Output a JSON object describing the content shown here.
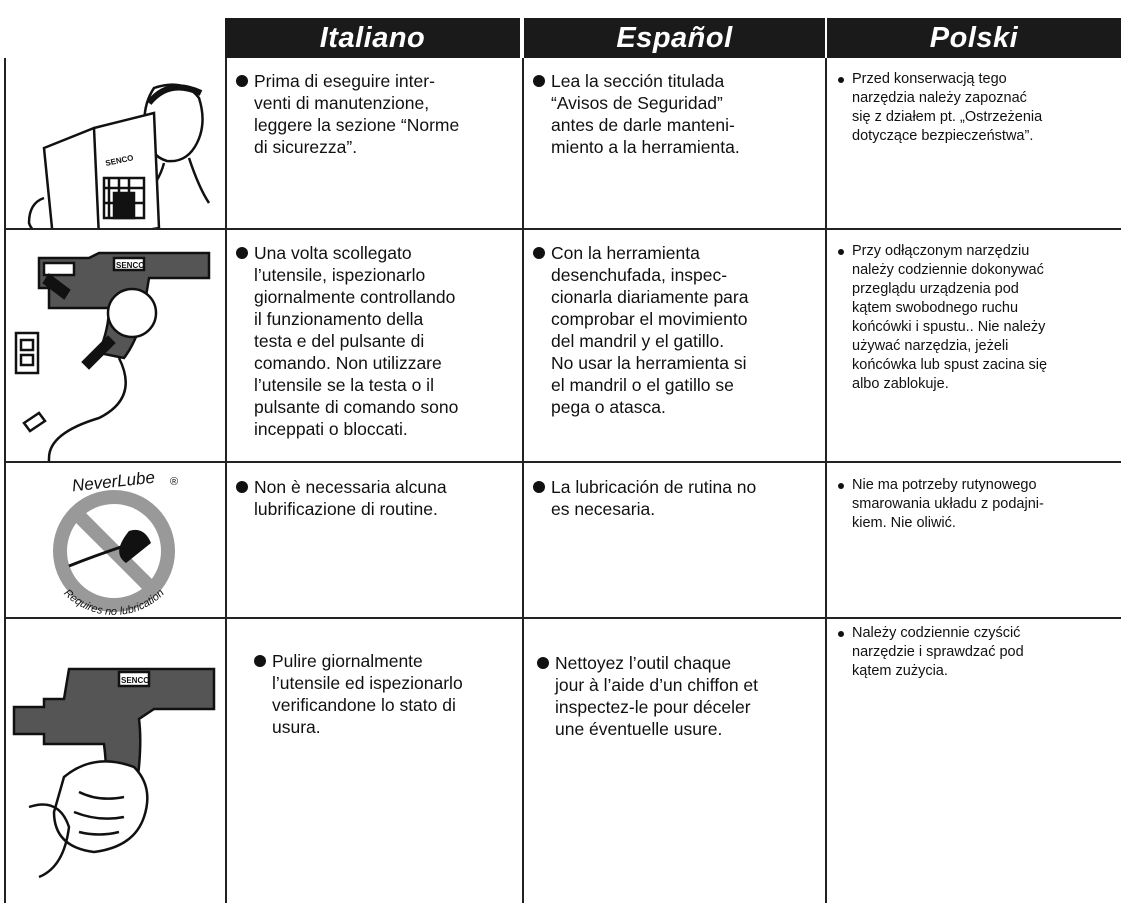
{
  "header": {
    "columns": [
      "Italiano",
      "Español",
      "Polski"
    ]
  },
  "rows": [
    {
      "icon_text": "SENCO",
      "cells": [
        {
          "lines": [
            "Prima di eseguire inter-",
            "venti di manutenzione,",
            "leggere la sezione “Norme",
            "di sicurezza”."
          ]
        },
        {
          "lines": [
            "Lea la sección titulada",
            "“Avisos de Seguridad”",
            "antes de darle manteni-",
            "miento a la herramienta."
          ]
        },
        {
          "lines": [
            "Przed konserwacją tego",
            "narzędzia należy zapoznać",
            "się z działem pt. „Ostrzeżenia",
            "dotyczące bezpieczeństwa”."
          ]
        }
      ]
    },
    {
      "icon_text": "SENCO",
      "cells": [
        {
          "lines": [
            "Una volta scollegato",
            "l’utensile, ispezionarlo",
            "giornalmente controllando",
            "il funzionamento della",
            "testa e del pulsante di",
            "comando. Non utilizzare",
            "l’utensile se la testa o il",
            "pulsante di comando sono",
            "inceppati o bloccati."
          ]
        },
        {
          "lines": [
            "Con la herramienta",
            "desenchufada, inspec-",
            "cionarla diariamente para",
            "comprobar el movimiento",
            "del mandril y el gatillo.",
            "No usar la herramienta si",
            "el mandril o el gatillo se",
            "pega o atasca."
          ]
        },
        {
          "lines": [
            "Przy odłączonym narzędziu",
            "należy codziennie dokonywać",
            "przeglądu urządzenia pod",
            "kątem swobodnego ruchu",
            "końcówki i spustu.. Nie należy",
            "używać narzędzia, jeżeli",
            "końcówka lub spust zacina się",
            "albo zablokuje."
          ]
        }
      ]
    },
    {
      "icon_text": "NeverLube",
      "icon_mark": "®",
      "icon_caption": "Requires no lubrication",
      "cells": [
        {
          "lines": [
            "Non è necessaria alcuna",
            "lubrificazione di routine."
          ]
        },
        {
          "lines": [
            "La lubricación de rutina no",
            "es necesaria."
          ]
        },
        {
          "lines": [
            "Nie ma potrzeby rutynowego",
            "smarowania układu z podajni-",
            "kiem. Nie oliwić."
          ]
        }
      ]
    },
    {
      "icon_text": "SENCO",
      "cells": [
        {
          "lines": [
            "Pulire giornalmente",
            "l’utensile ed ispezionarlo",
            "verificandone lo stato di",
            "usura."
          ]
        },
        {
          "lines": [
            "Nettoyez l’outil chaque",
            "jour à l’aide d’un chiffon et",
            "inspectez-le pour déceler",
            "une éventuelle usure."
          ]
        },
        {
          "lines": [
            "Należy codziennie czyścić",
            "narzędzie i sprawdzać pod",
            "kątem zużycia."
          ]
        }
      ]
    }
  ]
}
